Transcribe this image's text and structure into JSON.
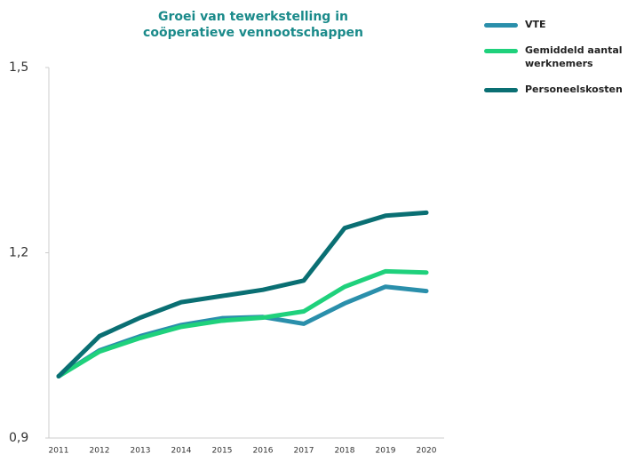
{
  "chart_data": {
    "type": "line",
    "title": "Groei van tewerkstelling in coöperatieve vennootschappen",
    "categories": [
      "2011",
      "2012",
      "2013",
      "2014",
      "2015",
      "2016",
      "2017",
      "2018",
      "2019",
      "2020"
    ],
    "series": [
      {
        "name": "VTE",
        "color": "#2a8fab",
        "values": [
          1.0,
          1.042,
          1.065,
          1.083,
          1.094,
          1.096,
          1.085,
          1.118,
          1.145,
          1.138
        ]
      },
      {
        "name": "Gemiddeld aantal werknemers",
        "color": "#1fd17c",
        "values": [
          1.0,
          1.04,
          1.062,
          1.08,
          1.09,
          1.095,
          1.105,
          1.145,
          1.17,
          1.168
        ]
      },
      {
        "name": "Personeelskosten",
        "color": "#0a6f73",
        "values": [
          1.0,
          1.065,
          1.095,
          1.12,
          1.13,
          1.14,
          1.155,
          1.24,
          1.26,
          1.265
        ]
      }
    ],
    "ylim": [
      0.9,
      1.5
    ],
    "yticks": [
      {
        "value": 0.9,
        "label": "0,9"
      },
      {
        "value": 1.2,
        "label": "1,2"
      },
      {
        "value": 1.5,
        "label": "1,5"
      }
    ],
    "legend": "top-right"
  }
}
